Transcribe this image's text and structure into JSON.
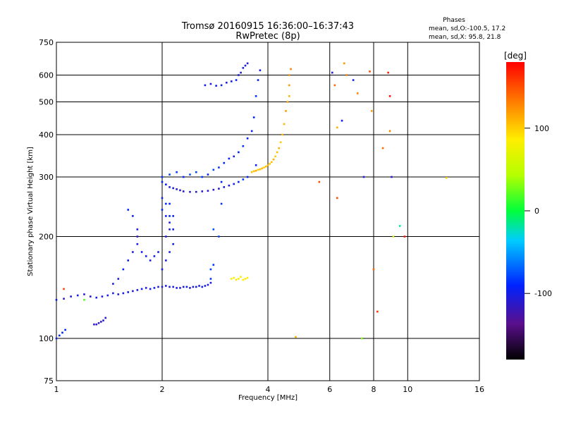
{
  "chart_data": {
    "type": "scatter",
    "title": "Tromsø 20160915 16:36:00–16:37:43",
    "subtitle": "RwPretec (8p)",
    "xlabel": "Frequency [MHz]",
    "ylabel": "Stationary phase Virtual Height [km]",
    "x_scale": "log",
    "y_scale": "log",
    "xlim": [
      1,
      16
    ],
    "ylim": [
      75,
      750
    ],
    "x_ticks": [
      1,
      2,
      4,
      6,
      8,
      10,
      16
    ],
    "y_ticks": [
      75,
      100,
      200,
      300,
      400,
      500,
      600,
      750
    ],
    "x_tick_labels": [
      "1",
      "2",
      "4",
      "6",
      "8",
      "10",
      "16"
    ],
    "y_tick_labels": [
      "75",
      "100",
      "200",
      "300",
      "400",
      "500",
      "600",
      "750"
    ],
    "grid_x": [
      2,
      4,
      6,
      8,
      10
    ],
    "grid_y": [
      100,
      200,
      300,
      400,
      500,
      600
    ],
    "grid": true,
    "stats": {
      "heading": "Phases",
      "line1": "mean, sd,O:-100.5, 17.2",
      "line2": "mean, sd,X:  95.8, 21.8"
    },
    "colorbar": {
      "label": "[deg]",
      "range": [
        -180,
        180
      ],
      "ticks": [
        100,
        0,
        -100
      ],
      "tick_labels": [
        "100",
        "0",
        "-100"
      ]
    },
    "series": [
      {
        "x": [
          1.0,
          1.05,
          1.1,
          1.15,
          1.2,
          1.25,
          1.3,
          1.35,
          1.4,
          1.45,
          1.5,
          1.55,
          1.6,
          1.65,
          1.7,
          1.75,
          1.8,
          1.85,
          1.9,
          1.95,
          2.0,
          2.05,
          2.1,
          2.15,
          2.2,
          2.25,
          2.3,
          2.35,
          2.4,
          2.45,
          2.5,
          2.55,
          2.6,
          2.65,
          2.7,
          2.75
        ],
        "y": [
          130,
          131,
          133,
          134,
          135,
          133,
          132,
          133,
          134,
          136,
          135,
          136,
          137,
          138,
          139,
          140,
          141,
          140,
          141,
          142,
          142,
          143,
          142,
          142,
          141,
          141,
          142,
          142,
          141,
          142,
          142,
          143,
          142,
          143,
          144,
          146
        ],
        "phase": [
          -100,
          -110,
          -105,
          -100,
          -110,
          -105,
          -100,
          -110,
          -105,
          -100,
          -110,
          -105,
          -100,
          -110,
          -105,
          -100,
          -110,
          -105,
          -100,
          -110,
          -105,
          -100,
          -110,
          -105,
          -100,
          -110,
          -105,
          -100,
          -110,
          -105,
          -100,
          -110,
          -105,
          -100,
          -110,
          -105
        ]
      },
      {
        "x": [
          1.0,
          1.02,
          1.04,
          1.06,
          1.28,
          1.3,
          1.32,
          1.34,
          1.36,
          1.38
        ],
        "y": [
          100,
          102,
          104,
          106,
          110,
          110,
          111,
          112,
          113,
          115
        ],
        "phase": [
          -95,
          -90,
          -95,
          -90,
          -115,
          -115,
          -115,
          -115,
          -110,
          -110
        ]
      },
      {
        "x": [
          1.45,
          1.5,
          1.55,
          1.6,
          1.6,
          1.65,
          1.65,
          1.7,
          1.7,
          1.7,
          1.75,
          1.8,
          1.85,
          1.9,
          1.95,
          2.0,
          2.0,
          2.0,
          2.05,
          2.05,
          2.05,
          2.05,
          2.1,
          2.1,
          2.1,
          2.1,
          2.1,
          2.15,
          2.15,
          2.15,
          2.75,
          2.75,
          2.8,
          2.8,
          2.9,
          2.95,
          2.95
        ],
        "y": [
          145,
          150,
          160,
          170,
          240,
          180,
          230,
          190,
          200,
          210,
          180,
          175,
          170,
          175,
          180,
          160,
          240,
          260,
          170,
          200,
          230,
          250,
          180,
          210,
          220,
          230,
          250,
          190,
          210,
          230,
          150,
          160,
          165,
          210,
          200,
          250,
          290
        ],
        "phase": [
          -100,
          -105,
          -95,
          -100,
          -90,
          -105,
          -95,
          -100,
          -110,
          -105,
          -95,
          -100,
          -105,
          -100,
          -95,
          -100,
          -90,
          -95,
          -105,
          -100,
          -95,
          -90,
          -100,
          -105,
          -100,
          -95,
          -90,
          -100,
          -95,
          -90,
          -85,
          -80,
          -85,
          -75,
          -80,
          -85,
          -90
        ]
      },
      {
        "x": [
          2.0,
          2.05,
          2.1,
          2.15,
          2.2,
          2.25,
          2.3,
          2.4,
          2.5,
          2.6,
          2.7,
          2.8,
          2.9,
          3.0,
          3.1,
          3.2,
          3.3,
          3.4,
          3.5,
          3.6,
          3.7
        ],
        "y": [
          290,
          285,
          280,
          278,
          276,
          274,
          272,
          271,
          271,
          272,
          273,
          275,
          277,
          280,
          283,
          286,
          290,
          295,
          300,
          310,
          325
        ],
        "phase": [
          -90,
          -95,
          -100,
          -105,
          -110,
          -115,
          -115,
          -110,
          -110,
          -110,
          -115,
          -115,
          -110,
          -105,
          -100,
          -95,
          -90,
          -85,
          -90,
          -95,
          -95
        ]
      },
      {
        "x": [
          2.0,
          2.1,
          2.2,
          2.3,
          2.4,
          2.5,
          2.6,
          2.7,
          2.8,
          2.9,
          3.0,
          3.1,
          3.2,
          3.3,
          3.4,
          3.5,
          3.6,
          3.65,
          3.7,
          3.75,
          3.8
        ],
        "y": [
          300,
          305,
          310,
          300,
          305,
          310,
          300,
          305,
          315,
          320,
          330,
          340,
          345,
          355,
          370,
          390,
          410,
          450,
          520,
          580,
          620
        ],
        "phase": [
          -85,
          -80,
          -85,
          -90,
          -75,
          -80,
          -85,
          -90,
          -80,
          -85,
          -90,
          -95,
          -100,
          -90,
          -85,
          -95,
          -100,
          -90,
          -85,
          -95,
          -100
        ]
      },
      {
        "x": [
          2.65,
          2.75,
          2.85,
          2.95,
          3.05,
          3.15,
          3.25,
          3.3,
          3.35,
          3.4,
          3.45,
          3.5
        ],
        "y": [
          560,
          565,
          558,
          560,
          570,
          575,
          580,
          600,
          610,
          630,
          640,
          650
        ],
        "phase": [
          -100,
          -105,
          -100,
          -95,
          -105,
          -100,
          -95,
          -100,
          -110,
          -105,
          -100,
          -110
        ]
      },
      {
        "x": [
          3.6,
          3.65,
          3.7,
          3.75,
          3.8,
          3.85,
          3.9,
          3.95,
          4.0,
          4.05,
          4.1,
          4.15,
          4.2,
          4.25,
          4.3,
          4.35,
          4.4,
          4.45,
          4.5,
          4.55,
          4.6,
          4.6,
          4.6,
          4.65
        ],
        "y": [
          310,
          312,
          313,
          315,
          316,
          318,
          320,
          322,
          325,
          328,
          332,
          338,
          345,
          355,
          365,
          380,
          400,
          430,
          470,
          500,
          520,
          560,
          600,
          625
        ],
        "phase": [
          100,
          105,
          110,
          100,
          105,
          110,
          100,
          105,
          110,
          100,
          105,
          110,
          100,
          105,
          110,
          100,
          105,
          110,
          120,
          115,
          110,
          120,
          125,
          130
        ]
      },
      {
        "x": [
          3.15,
          3.2,
          3.25,
          3.3,
          3.35,
          3.4,
          3.45,
          3.5
        ],
        "y": [
          150,
          151,
          149,
          150,
          152,
          149,
          150,
          151
        ],
        "phase": [
          80,
          85,
          90,
          85,
          80,
          85,
          90,
          85
        ]
      },
      {
        "x": [
          6.1,
          6.2,
          6.3,
          6.5,
          6.6,
          6.7,
          7.0,
          7.2,
          7.5,
          7.8,
          7.9,
          8.0,
          8.2,
          8.5,
          8.8,
          8.9,
          8.9,
          9.0,
          9.1,
          9.5,
          9.8,
          12.9,
          1.05,
          1.2,
          4.8,
          5.6,
          6.3,
          7.4
        ],
        "y": [
          610,
          560,
          420,
          440,
          650,
          600,
          580,
          530,
          300,
          615,
          470,
          160,
          120,
          365,
          610,
          520,
          410,
          300,
          200,
          215,
          200,
          298,
          140,
          130,
          101,
          290,
          260,
          100
        ],
        "phase": [
          -110,
          140,
          110,
          -100,
          120,
          130,
          -100,
          130,
          -110,
          150,
          120,
          140,
          160,
          140,
          170,
          175,
          130,
          -110,
          50,
          -20,
          175,
          90,
          155,
          20,
          110,
          150,
          150,
          30
        ]
      }
    ]
  }
}
